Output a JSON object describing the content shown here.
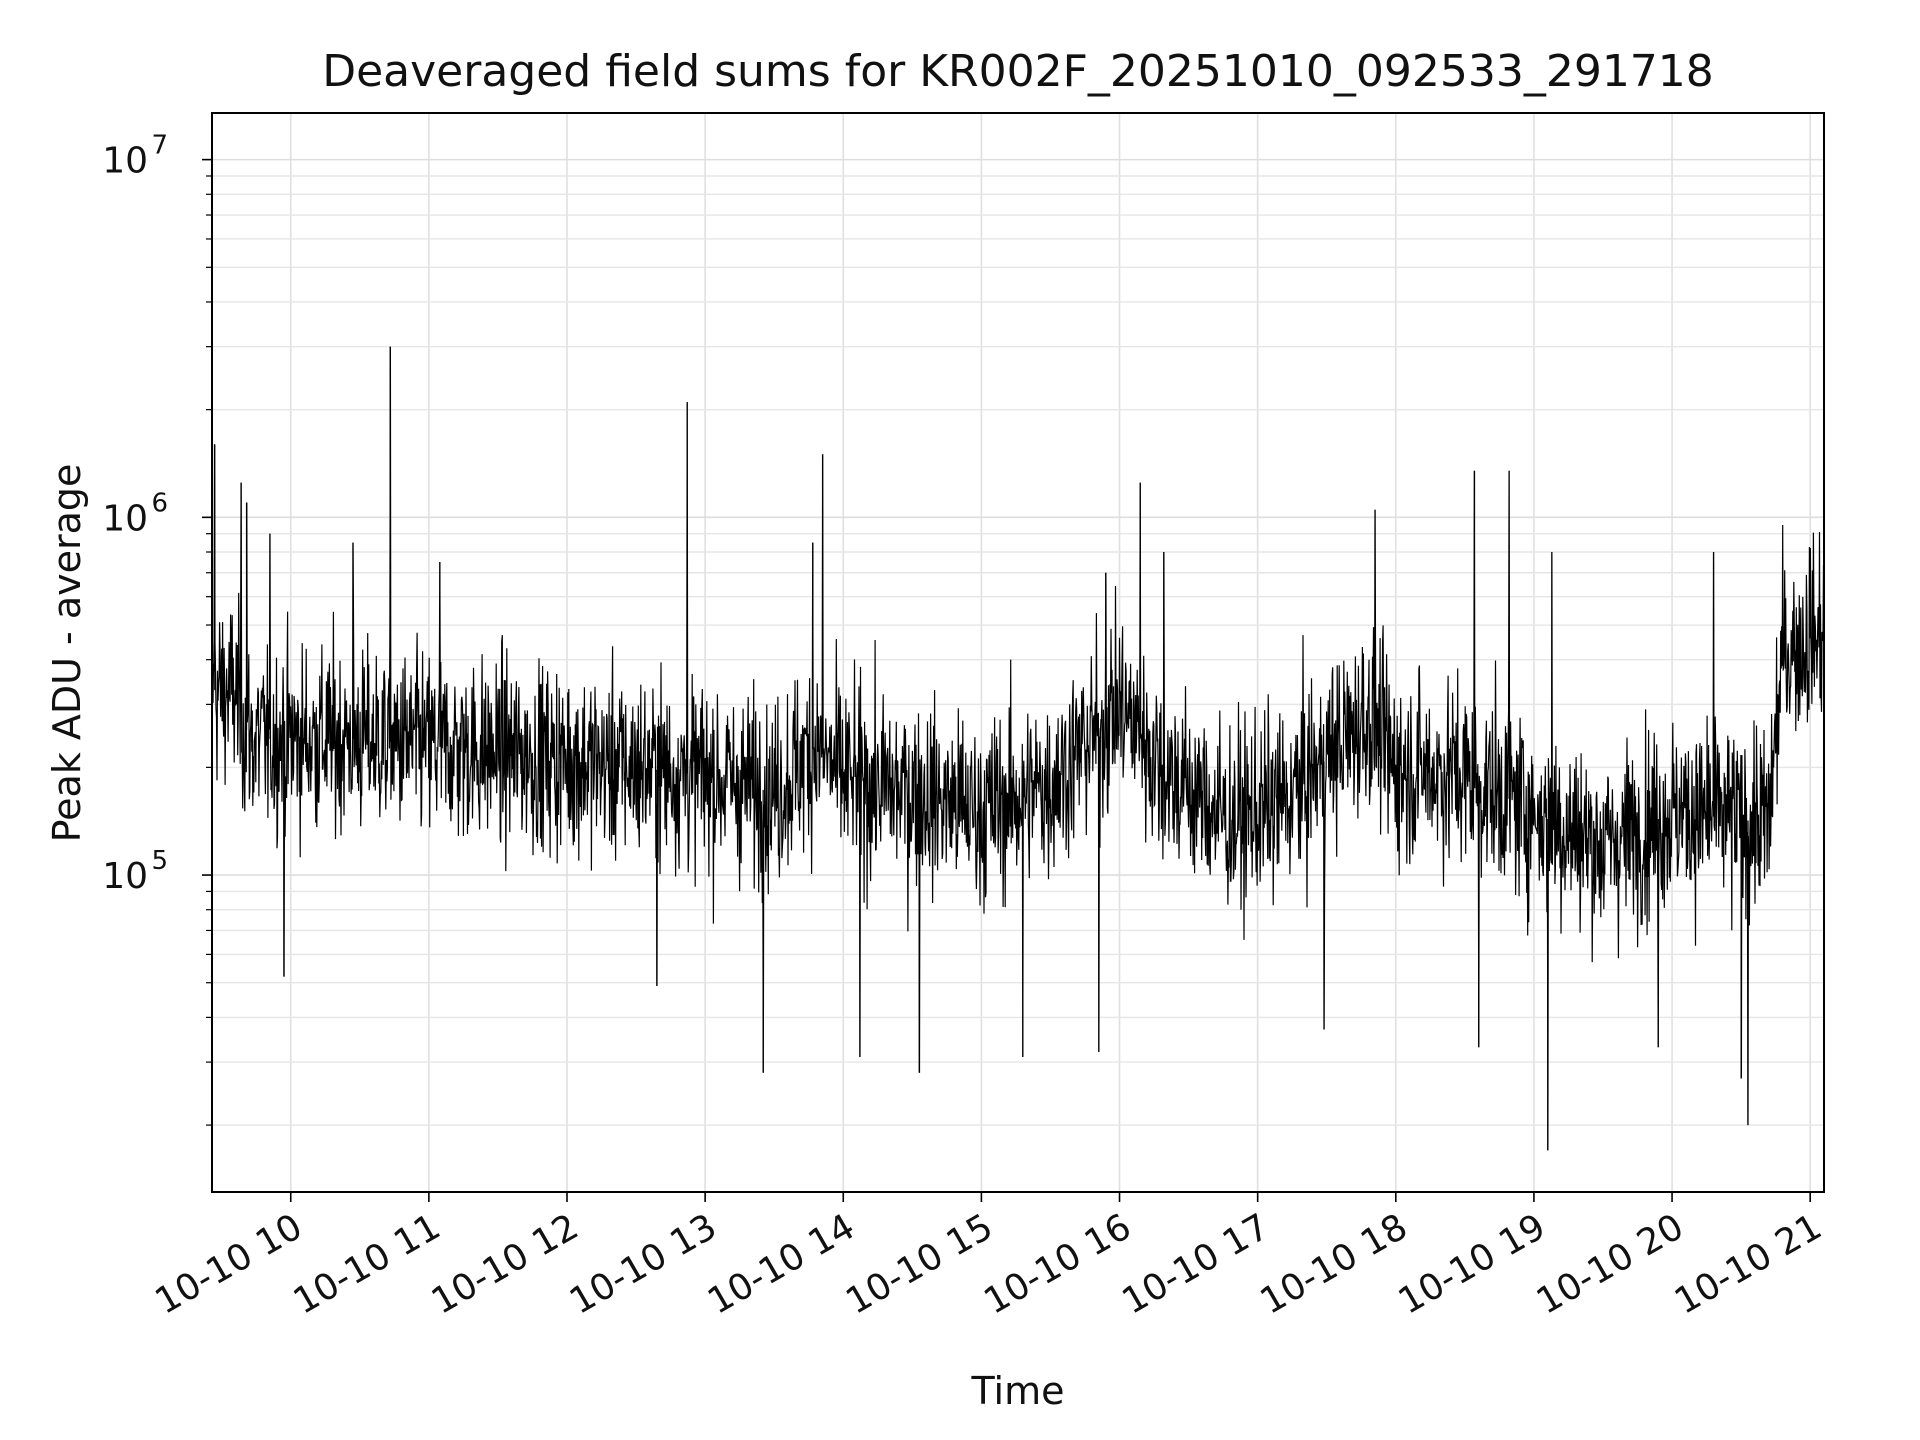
{
  "chart_data": {
    "type": "line",
    "title": "Deaveraged field sums for KR002F_20251010_092533_291718",
    "xlabel": "Time",
    "ylabel": "Peak ADU - average",
    "yscale": "log",
    "ylim": [
      13000,
      13500000
    ],
    "xlim_hours": [
      9.43,
      21.1
    ],
    "grid": true,
    "line_color": "#000000",
    "y_tick_labels": [
      {
        "value": 100000,
        "base": "10",
        "exp": "5"
      },
      {
        "value": 1000000,
        "base": "10",
        "exp": "6"
      },
      {
        "value": 10000000,
        "base": "10",
        "exp": "7"
      }
    ],
    "x_ticks": [
      {
        "hour": 10,
        "label": "10-10 10"
      },
      {
        "hour": 11,
        "label": "10-10 11"
      },
      {
        "hour": 12,
        "label": "10-10 12"
      },
      {
        "hour": 13,
        "label": "10-10 13"
      },
      {
        "hour": 14,
        "label": "10-10 14"
      },
      {
        "hour": 15,
        "label": "10-10 15"
      },
      {
        "hour": 16,
        "label": "10-10 16"
      },
      {
        "hour": 17,
        "label": "10-10 17"
      },
      {
        "hour": 18,
        "label": "10-10 18"
      },
      {
        "hour": 19,
        "label": "10-10 19"
      },
      {
        "hour": 20,
        "label": "10-10 20"
      },
      {
        "hour": 21,
        "label": "10-10 21"
      }
    ],
    "series": [
      {
        "name": "Deaveraged field sum",
        "baseline": [
          {
            "hour": 9.43,
            "value": 330000
          },
          {
            "hour": 9.6,
            "value": 320000
          },
          {
            "hour": 9.7,
            "value": 240000
          },
          {
            "hour": 10.5,
            "value": 240000
          },
          {
            "hour": 11.5,
            "value": 220000
          },
          {
            "hour": 12.5,
            "value": 200000
          },
          {
            "hour": 13.0,
            "value": 190000
          },
          {
            "hour": 13.5,
            "value": 170000
          },
          {
            "hour": 13.8,
            "value": 230000
          },
          {
            "hour": 14.0,
            "value": 185000
          },
          {
            "hour": 14.5,
            "value": 170000
          },
          {
            "hour": 15.0,
            "value": 150000
          },
          {
            "hour": 15.5,
            "value": 180000
          },
          {
            "hour": 16.0,
            "value": 300000
          },
          {
            "hour": 16.3,
            "value": 200000
          },
          {
            "hour": 16.8,
            "value": 140000
          },
          {
            "hour": 17.2,
            "value": 160000
          },
          {
            "hour": 17.8,
            "value": 280000
          },
          {
            "hour": 18.0,
            "value": 200000
          },
          {
            "hour": 18.5,
            "value": 190000
          },
          {
            "hour": 19.0,
            "value": 150000
          },
          {
            "hour": 19.5,
            "value": 120000
          },
          {
            "hour": 20.0,
            "value": 150000
          },
          {
            "hour": 20.7,
            "value": 140000
          },
          {
            "hour": 20.8,
            "value": 420000
          },
          {
            "hour": 21.1,
            "value": 480000
          }
        ],
        "spikes": [
          {
            "hour": 9.45,
            "value": 1600000
          },
          {
            "hour": 9.64,
            "value": 1250000
          },
          {
            "hour": 9.68,
            "value": 1100000
          },
          {
            "hour": 9.85,
            "value": 900000
          },
          {
            "hour": 10.45,
            "value": 850000
          },
          {
            "hour": 10.72,
            "value": 3000000
          },
          {
            "hour": 11.08,
            "value": 750000
          },
          {
            "hour": 12.87,
            "value": 2100000
          },
          {
            "hour": 13.78,
            "value": 850000
          },
          {
            "hour": 13.85,
            "value": 1500000
          },
          {
            "hour": 15.9,
            "value": 700000
          },
          {
            "hour": 16.15,
            "value": 1250000
          },
          {
            "hour": 16.32,
            "value": 800000
          },
          {
            "hour": 17.85,
            "value": 1050000
          },
          {
            "hour": 18.57,
            "value": 1350000
          },
          {
            "hour": 18.82,
            "value": 1350000
          },
          {
            "hour": 19.13,
            "value": 800000
          },
          {
            "hour": 20.3,
            "value": 800000
          },
          {
            "hour": 21.0,
            "value": 820000
          },
          {
            "hour": 13.42,
            "value": 28000
          },
          {
            "hour": 14.12,
            "value": 31000
          },
          {
            "hour": 14.55,
            "value": 28000
          },
          {
            "hour": 15.3,
            "value": 31000
          },
          {
            "hour": 15.85,
            "value": 32000
          },
          {
            "hour": 17.48,
            "value": 37000
          },
          {
            "hour": 18.6,
            "value": 33000
          },
          {
            "hour": 19.1,
            "value": 17000
          },
          {
            "hour": 20.55,
            "value": 20000
          },
          {
            "hour": 20.5,
            "value": 27000
          },
          {
            "hour": 19.9,
            "value": 33000
          },
          {
            "hour": 9.95,
            "value": 52000
          },
          {
            "hour": 12.65,
            "value": 49000
          }
        ]
      }
    ]
  }
}
